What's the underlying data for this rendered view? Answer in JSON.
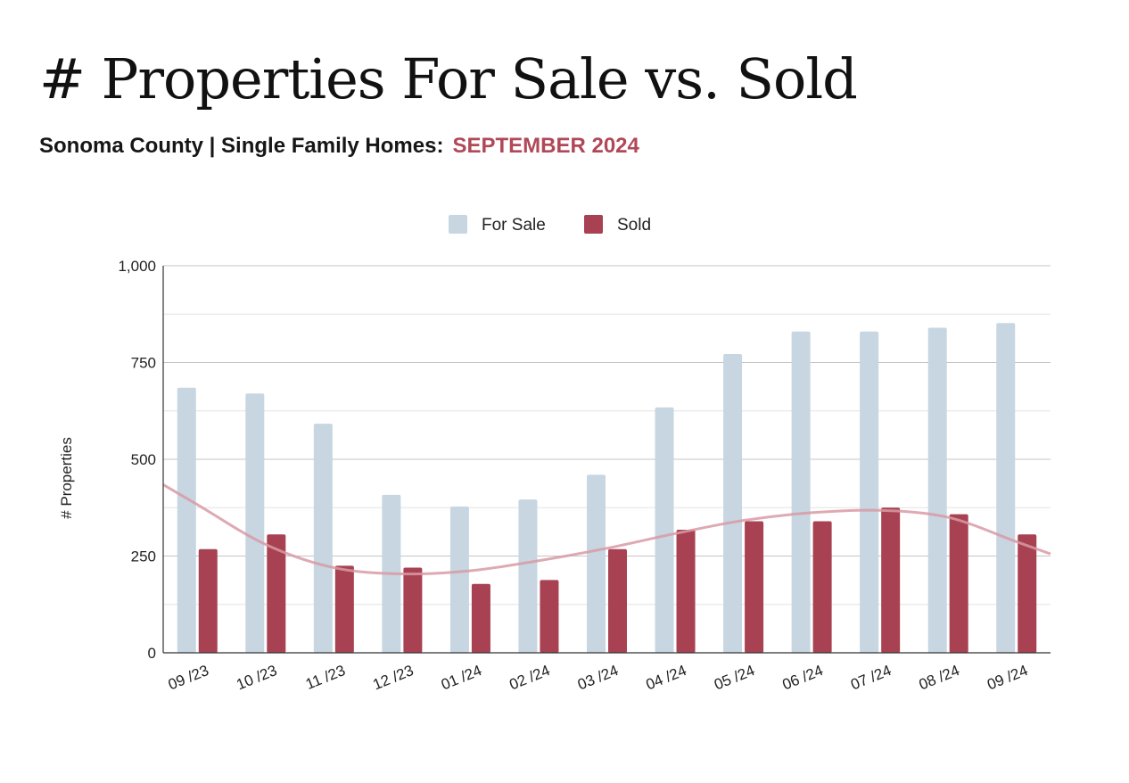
{
  "header": {
    "title": "# Properties For Sale vs. Sold",
    "subtitle": "Sonoma County | Single Family Homes:",
    "month": "SEPTEMBER 2024"
  },
  "colors": {
    "for_sale": "#c7d6e1",
    "sold": "#a84152",
    "trendline": "#d89aa4",
    "accent": "#b04858"
  },
  "chart_data": {
    "type": "bar",
    "title": "",
    "xlabel": "",
    "ylabel": "# Properties",
    "ylim": [
      0,
      1000
    ],
    "yticks": [
      0,
      250,
      500,
      750,
      1000
    ],
    "ytick_labels": [
      "0",
      "250",
      "500",
      "750",
      "1,000"
    ],
    "grid": true,
    "legend_position": "top",
    "categories": [
      "09 /23",
      "10 /23",
      "11 /23",
      "12 /23",
      "01 /24",
      "02 /24",
      "03 /24",
      "04 /24",
      "05 /24",
      "06 /24",
      "07 /24",
      "08 /24",
      "09 /24"
    ],
    "series": [
      {
        "name": "For Sale",
        "values": [
          685,
          670,
          592,
          408,
          378,
          396,
          460,
          634,
          772,
          830,
          830,
          840,
          852
        ]
      },
      {
        "name": "Sold",
        "values": [
          268,
          306,
          225,
          220,
          178,
          188,
          268,
          318,
          340,
          340,
          375,
          358,
          306
        ]
      }
    ],
    "trendline": {
      "series": "Sold",
      "type": "polynomial",
      "values": [
        383,
        280,
        220,
        204,
        212,
        238,
        270,
        308,
        342,
        362,
        368,
        350,
        287
      ]
    }
  }
}
